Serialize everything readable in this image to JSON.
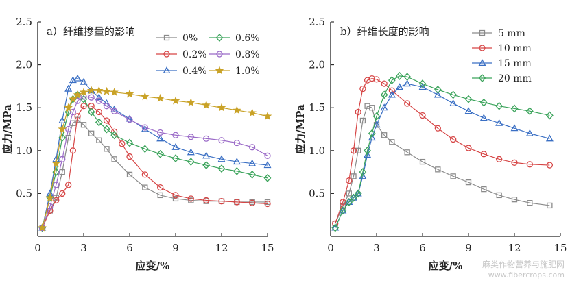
{
  "chart_data": [
    {
      "type": "line",
      "title": "a）纤维掺量的影响",
      "xlabel": "应变/%",
      "ylabel": "应力/MPa",
      "xlim": [
        0,
        15
      ],
      "ylim": [
        0,
        2.5
      ],
      "xticks": [
        0,
        3,
        6,
        9,
        12,
        15
      ],
      "yticks": [
        0.5,
        1.0,
        1.5,
        2.0,
        2.5
      ],
      "legend_placement": "top-right",
      "legend_columns": 2,
      "series": [
        {
          "name": "0%",
          "color": "#8a8a8a",
          "marker": "square",
          "x": [
            0.3,
            0.8,
            1.2,
            1.6,
            2.0,
            2.3,
            2.6,
            3.0,
            3.5,
            4.0,
            4.5,
            5.0,
            6.0,
            7.0,
            8.0,
            9.0,
            10.0,
            11.0,
            12.0,
            13.0,
            14.0,
            15.0
          ],
          "y": [
            0.1,
            0.3,
            0.45,
            0.75,
            1.15,
            1.32,
            1.36,
            1.3,
            1.2,
            1.12,
            1.02,
            0.9,
            0.72,
            0.57,
            0.48,
            0.44,
            0.42,
            0.41,
            0.41,
            0.4,
            0.4,
            0.4
          ]
        },
        {
          "name": "0.2%",
          "color": "#d64545",
          "marker": "circle",
          "x": [
            0.3,
            0.8,
            1.2,
            1.6,
            2.0,
            2.3,
            2.6,
            3.0,
            3.5,
            4.0,
            4.5,
            5.0,
            5.5,
            6.0,
            7.0,
            8.0,
            9.0,
            10.0,
            11.0,
            12.0,
            13.0,
            14.0,
            15.0
          ],
          "y": [
            0.1,
            0.3,
            0.42,
            0.5,
            0.6,
            1.0,
            1.4,
            1.52,
            1.52,
            1.45,
            1.35,
            1.22,
            1.08,
            0.93,
            0.72,
            0.57,
            0.48,
            0.44,
            0.42,
            0.41,
            0.4,
            0.39,
            0.38
          ]
        },
        {
          "name": "0.4%",
          "color": "#3a6fc4",
          "marker": "triangle",
          "x": [
            0.3,
            0.8,
            1.2,
            1.6,
            2.0,
            2.3,
            2.6,
            3.0,
            3.5,
            4.0,
            4.5,
            5.0,
            6.0,
            7.0,
            8.0,
            9.0,
            10.0,
            11.0,
            12.0,
            13.0,
            14.0,
            15.0
          ],
          "y": [
            0.1,
            0.5,
            0.9,
            1.35,
            1.72,
            1.82,
            1.84,
            1.8,
            1.7,
            1.62,
            1.55,
            1.48,
            1.37,
            1.25,
            1.14,
            1.04,
            0.98,
            0.94,
            0.9,
            0.87,
            0.85,
            0.83
          ]
        },
        {
          "name": "0.6%",
          "color": "#3aa35a",
          "marker": "diamond",
          "x": [
            0.3,
            0.8,
            1.2,
            1.6,
            2.0,
            2.3,
            2.6,
            3.0,
            3.5,
            4.0,
            4.5,
            5.0,
            6.0,
            7.0,
            8.0,
            9.0,
            10.0,
            11.0,
            12.0,
            13.0,
            14.0,
            15.0
          ],
          "y": [
            0.1,
            0.45,
            0.75,
            1.15,
            1.45,
            1.6,
            1.65,
            1.6,
            1.45,
            1.33,
            1.25,
            1.18,
            1.09,
            1.02,
            0.96,
            0.91,
            0.87,
            0.83,
            0.79,
            0.76,
            0.72,
            0.68
          ]
        },
        {
          "name": "0.8%",
          "color": "#9b6bc8",
          "marker": "circle",
          "x": [
            0.3,
            0.8,
            1.2,
            1.6,
            2.0,
            2.3,
            2.6,
            3.0,
            3.5,
            4.0,
            4.5,
            5.0,
            6.0,
            7.0,
            8.0,
            9.0,
            10.0,
            11.0,
            12.0,
            13.0,
            14.0,
            15.0
          ],
          "y": [
            0.1,
            0.35,
            0.6,
            0.9,
            1.25,
            1.45,
            1.58,
            1.63,
            1.62,
            1.58,
            1.52,
            1.46,
            1.36,
            1.27,
            1.21,
            1.18,
            1.16,
            1.14,
            1.12,
            1.09,
            1.04,
            0.94
          ]
        },
        {
          "name": "1.0%",
          "color": "#c9a227",
          "marker": "star",
          "x": [
            0.3,
            0.8,
            1.2,
            1.6,
            2.0,
            2.3,
            2.6,
            3.0,
            3.5,
            4.0,
            4.5,
            5.0,
            6.0,
            7.0,
            8.0,
            9.0,
            10.0,
            11.0,
            12.0,
            13.0,
            14.0,
            15.0
          ],
          "y": [
            0.1,
            0.45,
            0.85,
            1.25,
            1.5,
            1.6,
            1.65,
            1.68,
            1.7,
            1.7,
            1.69,
            1.68,
            1.66,
            1.63,
            1.61,
            1.58,
            1.56,
            1.53,
            1.5,
            1.47,
            1.44,
            1.4
          ]
        }
      ]
    },
    {
      "type": "line",
      "title": "b）纤维长度的影响",
      "xlabel": "应变/%",
      "ylabel": "应力/MPa",
      "xlim": [
        0,
        15
      ],
      "ylim": [
        0,
        2.5
      ],
      "xticks": [
        0,
        3,
        6,
        9,
        12,
        15
      ],
      "yticks": [
        0.5,
        1.0,
        1.5,
        2.0,
        2.5
      ],
      "legend_placement": "top-right",
      "legend_columns": 1,
      "series": [
        {
          "name": "5 mm",
          "color": "#8a8a8a",
          "marker": "square",
          "x": [
            0.3,
            0.8,
            1.2,
            1.5,
            1.8,
            2.1,
            2.4,
            2.7,
            3.0,
            3.5,
            4.0,
            5.0,
            6.0,
            7.0,
            8.0,
            9.0,
            10.0,
            11.0,
            12.0,
            13.0,
            14.3
          ],
          "y": [
            0.15,
            0.35,
            0.5,
            0.7,
            1.0,
            1.35,
            1.52,
            1.5,
            1.3,
            1.18,
            1.1,
            0.98,
            0.87,
            0.78,
            0.7,
            0.63,
            0.55,
            0.48,
            0.43,
            0.39,
            0.36
          ]
        },
        {
          "name": "10 mm",
          "color": "#d64545",
          "marker": "circle",
          "x": [
            0.3,
            0.8,
            1.2,
            1.5,
            1.8,
            2.1,
            2.4,
            2.7,
            3.0,
            3.5,
            4.0,
            5.0,
            6.0,
            7.0,
            8.0,
            9.0,
            10.0,
            11.0,
            12.0,
            13.0,
            14.3
          ],
          "y": [
            0.15,
            0.4,
            0.65,
            1.0,
            1.45,
            1.72,
            1.82,
            1.84,
            1.83,
            1.78,
            1.7,
            1.55,
            1.41,
            1.26,
            1.13,
            1.03,
            0.96,
            0.9,
            0.86,
            0.84,
            0.83
          ]
        },
        {
          "name": "15 mm",
          "color": "#3a6fc4",
          "marker": "triangle",
          "x": [
            0.3,
            0.8,
            1.2,
            1.5,
            1.8,
            2.1,
            2.4,
            2.7,
            3.0,
            3.5,
            4.0,
            4.5,
            5.0,
            6.0,
            7.0,
            8.0,
            9.0,
            10.0,
            11.0,
            12.0,
            13.0,
            14.3
          ],
          "y": [
            0.1,
            0.3,
            0.4,
            0.45,
            0.5,
            0.7,
            0.95,
            1.15,
            1.3,
            1.5,
            1.65,
            1.74,
            1.78,
            1.74,
            1.65,
            1.55,
            1.46,
            1.38,
            1.32,
            1.26,
            1.2,
            1.14
          ]
        },
        {
          "name": "20 mm",
          "color": "#3aa35a",
          "marker": "diamond",
          "x": [
            0.3,
            0.8,
            1.2,
            1.5,
            1.8,
            2.1,
            2.4,
            2.7,
            3.0,
            3.5,
            4.0,
            4.5,
            5.0,
            6.0,
            7.0,
            8.0,
            9.0,
            10.0,
            11.0,
            12.0,
            13.0,
            14.3
          ],
          "y": [
            0.1,
            0.3,
            0.4,
            0.45,
            0.5,
            0.75,
            1.0,
            1.2,
            1.4,
            1.65,
            1.82,
            1.87,
            1.86,
            1.78,
            1.71,
            1.65,
            1.6,
            1.56,
            1.52,
            1.49,
            1.46,
            1.41
          ]
        }
      ]
    }
  ],
  "watermark": {
    "line1": "麻类作物营养与施肥网",
    "line2": "www.fibercrops.com"
  }
}
